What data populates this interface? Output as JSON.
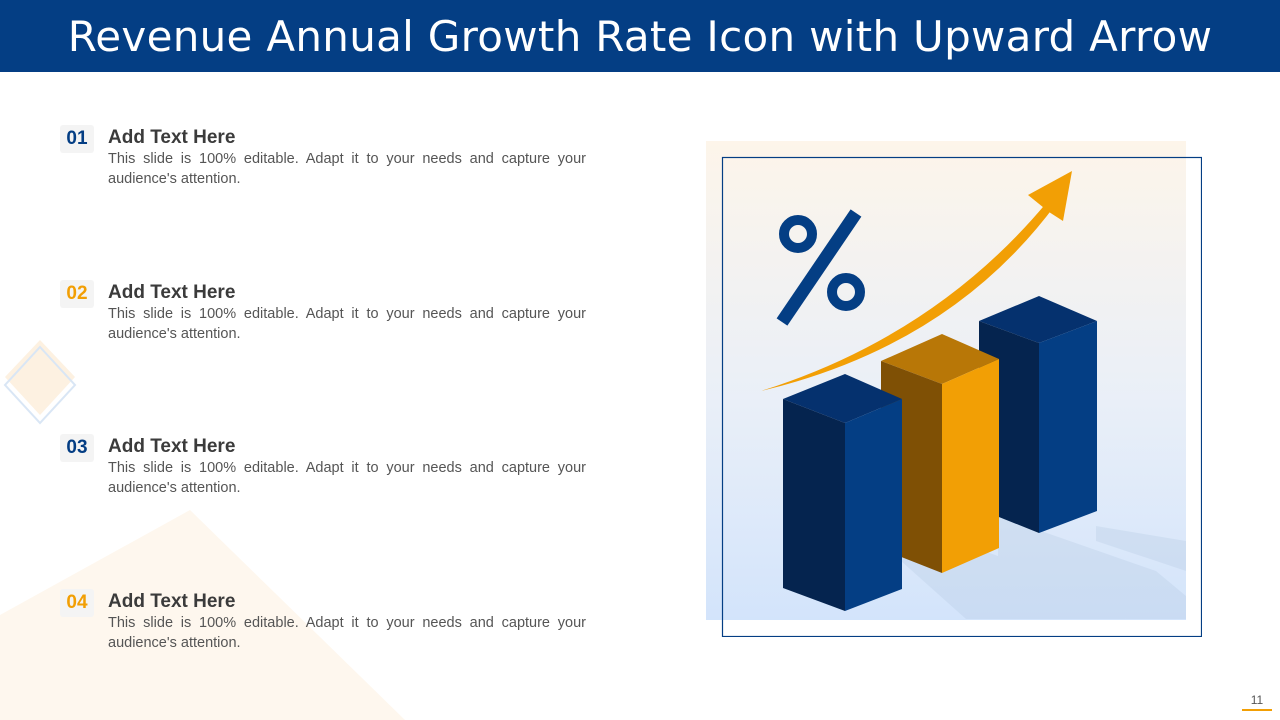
{
  "title": "Revenue Annual Growth Rate Icon with Upward Arrow",
  "items": [
    {
      "number": "01",
      "heading": "Add Text Here",
      "body": "This slide is 100% editable. Adapt it to your needs and capture your audience's attention."
    },
    {
      "number": "02",
      "heading": "Add Text Here",
      "body": "This slide is 100% editable. Adapt it to your needs and capture your audience's attention."
    },
    {
      "number": "03",
      "heading": "Add Text Here",
      "body": "This slide is 100% editable. Adapt it to your needs and capture your audience's attention."
    },
    {
      "number": "04",
      "heading": "Add Text Here",
      "body": "This slide is 100% editable. Adapt it to your needs and capture your audience's attention."
    }
  ],
  "illustration": {
    "percent_symbol": "%"
  },
  "page_number": "11",
  "colors": {
    "navy": "#043e84",
    "orange": "#f29f05"
  },
  "icons": [
    "percent-icon",
    "upward-arrow-icon",
    "bar-chart-icon"
  ]
}
